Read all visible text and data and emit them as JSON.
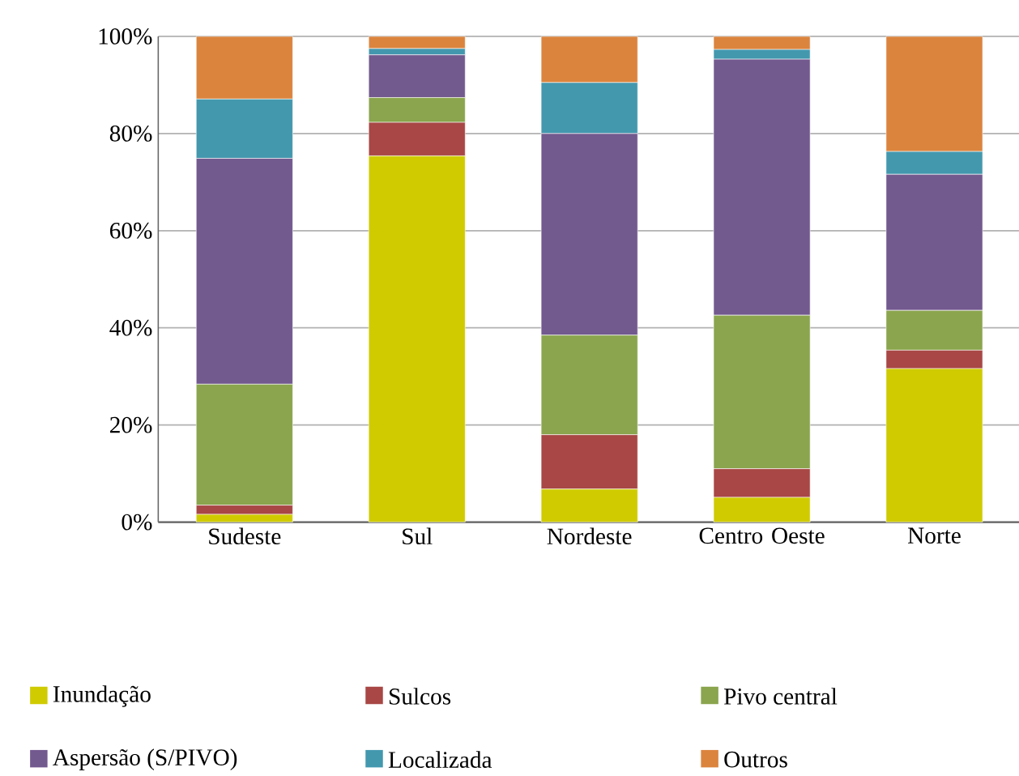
{
  "chart_data": {
    "type": "bar",
    "stacked": true,
    "categories": [
      "Sudeste",
      "Sul",
      "Nordeste",
      "Centro Oeste",
      "Norte"
    ],
    "ylim": [
      0,
      100
    ],
    "yticks": [
      {
        "value": 0,
        "label": "0%"
      },
      {
        "value": 20,
        "label": "20%"
      },
      {
        "value": 40,
        "label": "40%"
      },
      {
        "value": 60,
        "label": "60%"
      },
      {
        "value": 80,
        "label": "80%"
      },
      {
        "value": 100,
        "label": "100%"
      }
    ],
    "grid": "y",
    "legend": "bottom",
    "series": [
      {
        "name": "Inundação",
        "color": "#cfcb00",
        "values": [
          1.6,
          75.4,
          6.8,
          5.1,
          31.6
        ]
      },
      {
        "name": "Sulcos",
        "color": "#a84745",
        "values": [
          1.9,
          6.9,
          11.2,
          5.9,
          3.8
        ]
      },
      {
        "name": "Pivo central",
        "color": "#8aa54d",
        "values": [
          24.9,
          5.1,
          20.5,
          31.6,
          8.2
        ]
      },
      {
        "name": "Aspersão (S/PIVO)",
        "color": "#72598e",
        "values": [
          46.5,
          8.8,
          41.5,
          52.7,
          28.0
        ]
      },
      {
        "name": "Localizada",
        "color": "#4398ae",
        "values": [
          12.2,
          1.3,
          10.5,
          2.0,
          4.7
        ]
      },
      {
        "name": "Outros",
        "color": "#db843e",
        "values": [
          12.9,
          2.5,
          9.5,
          2.7,
          23.7
        ]
      }
    ]
  }
}
